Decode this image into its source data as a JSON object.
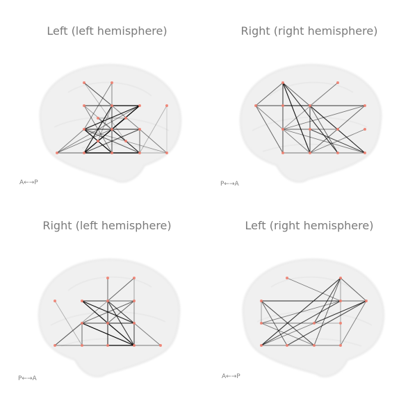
{
  "figure": {
    "node_color": "#f08070",
    "edge_color": "#000000",
    "brain_color": "#ededed",
    "panels": [
      {
        "title": "Left (left hemisphere)",
        "orientation": "A←→P",
        "nodes": 18,
        "edges": 40
      },
      {
        "title": "Right (right hemisphere)",
        "orientation": "P←→A",
        "nodes": 14,
        "edges": 28
      },
      {
        "title": "Right (left hemisphere)",
        "orientation": "P←→A",
        "nodes": 13,
        "edges": 30
      },
      {
        "title": "Left (right hemisphere)",
        "orientation": "A←→P",
        "nodes": 11,
        "edges": 24
      }
    ]
  }
}
